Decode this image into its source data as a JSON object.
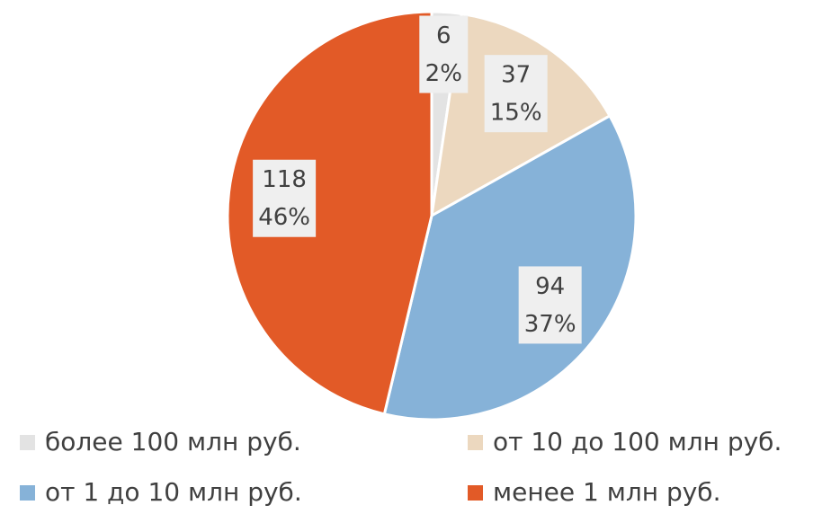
{
  "chart_data": {
    "type": "pie",
    "categories": [
      "более 100 млн руб.",
      "от 10 до 100 млн руб.",
      "от 1 до 10 млн руб.",
      "менее 1 млн руб."
    ],
    "values": [
      6,
      37,
      94,
      118
    ],
    "percent_labels": [
      "2%",
      "15%",
      "37%",
      "46%"
    ],
    "colors": [
      "#e3e3e3",
      "#ecd8bf",
      "#86b2d8",
      "#e25a27"
    ],
    "legend": "bottom"
  }
}
